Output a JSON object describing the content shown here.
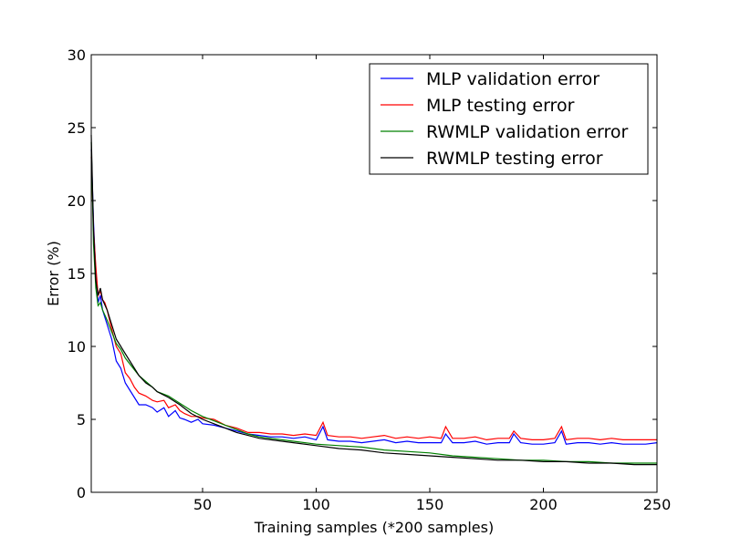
{
  "chart_data": {
    "type": "line",
    "xlabel": "Training samples (*200 samples)",
    "ylabel": "Error (%)",
    "xlim": [
      1,
      250
    ],
    "ylim": [
      0,
      30
    ],
    "x_ticks": [
      50,
      100,
      150,
      200,
      250
    ],
    "y_ticks": [
      0,
      5,
      10,
      15,
      20,
      25,
      30
    ],
    "grid": false,
    "legend_position": "top-right",
    "legend_title": "",
    "series": [
      {
        "name": "MLP validation error",
        "color": "#0000ff",
        "x": [
          1,
          2,
          3,
          4,
          5,
          6,
          7,
          8,
          10,
          12,
          14,
          16,
          18,
          20,
          22,
          25,
          28,
          30,
          33,
          35,
          38,
          40,
          42,
          45,
          48,
          50,
          55,
          60,
          65,
          70,
          75,
          80,
          85,
          90,
          95,
          100,
          103,
          105,
          110,
          115,
          120,
          125,
          130,
          135,
          140,
          145,
          150,
          155,
          157,
          160,
          165,
          170,
          175,
          180,
          185,
          187,
          190,
          195,
          200,
          205,
          208,
          210,
          215,
          220,
          225,
          230,
          235,
          240,
          245,
          250
        ],
        "values": [
          23.5,
          18.5,
          15.0,
          13.0,
          13.5,
          12.5,
          12.0,
          11.5,
          10.5,
          9.0,
          8.5,
          7.5,
          7.0,
          6.5,
          6.0,
          6.0,
          5.8,
          5.5,
          5.8,
          5.2,
          5.6,
          5.1,
          5.0,
          4.8,
          5.0,
          4.7,
          4.6,
          4.4,
          4.2,
          4.0,
          3.9,
          3.8,
          3.8,
          3.7,
          3.8,
          3.6,
          4.5,
          3.6,
          3.5,
          3.5,
          3.4,
          3.5,
          3.6,
          3.4,
          3.5,
          3.4,
          3.4,
          3.4,
          4.0,
          3.4,
          3.4,
          3.5,
          3.3,
          3.4,
          3.4,
          4.0,
          3.4,
          3.3,
          3.3,
          3.4,
          4.2,
          3.3,
          3.4,
          3.4,
          3.3,
          3.4,
          3.3,
          3.3,
          3.3,
          3.4
        ]
      },
      {
        "name": "MLP testing error",
        "color": "#ff0000",
        "x": [
          1,
          2,
          3,
          4,
          5,
          6,
          7,
          8,
          10,
          12,
          14,
          16,
          18,
          20,
          22,
          25,
          28,
          30,
          33,
          35,
          38,
          40,
          42,
          45,
          48,
          50,
          55,
          60,
          65,
          70,
          75,
          80,
          85,
          90,
          95,
          100,
          103,
          105,
          110,
          115,
          120,
          125,
          130,
          135,
          140,
          145,
          150,
          155,
          157,
          160,
          165,
          170,
          175,
          180,
          185,
          187,
          190,
          195,
          200,
          205,
          208,
          210,
          215,
          220,
          225,
          230,
          235,
          240,
          245,
          250
        ],
        "values": [
          23.0,
          18.0,
          15.5,
          13.5,
          13.8,
          13.2,
          13.0,
          12.5,
          11.2,
          10.0,
          9.5,
          8.2,
          7.8,
          7.2,
          6.8,
          6.6,
          6.3,
          6.2,
          6.3,
          5.8,
          6.0,
          5.6,
          5.4,
          5.2,
          5.2,
          5.1,
          5.0,
          4.6,
          4.4,
          4.1,
          4.1,
          4.0,
          4.0,
          3.9,
          4.0,
          3.9,
          4.8,
          3.9,
          3.8,
          3.8,
          3.7,
          3.8,
          3.9,
          3.7,
          3.8,
          3.7,
          3.8,
          3.7,
          4.5,
          3.7,
          3.7,
          3.8,
          3.6,
          3.7,
          3.7,
          4.2,
          3.7,
          3.6,
          3.6,
          3.7,
          4.5,
          3.6,
          3.7,
          3.7,
          3.6,
          3.7,
          3.6,
          3.6,
          3.6,
          3.6
        ]
      },
      {
        "name": "RWMLP validation error",
        "color": "#008000",
        "x": [
          1,
          2,
          3,
          4,
          5,
          6,
          8,
          10,
          12,
          14,
          16,
          18,
          20,
          22,
          25,
          28,
          30,
          35,
          40,
          45,
          50,
          55,
          60,
          65,
          70,
          75,
          80,
          90,
          100,
          110,
          120,
          130,
          140,
          150,
          160,
          170,
          180,
          190,
          200,
          210,
          220,
          230,
          240,
          250
        ],
        "values": [
          24.0,
          17.0,
          14.0,
          12.8,
          13.0,
          12.5,
          11.8,
          11.0,
          10.2,
          9.8,
          9.2,
          8.8,
          8.4,
          8.0,
          7.6,
          7.2,
          6.9,
          6.6,
          6.1,
          5.6,
          5.2,
          4.9,
          4.6,
          4.3,
          4.0,
          3.8,
          3.7,
          3.5,
          3.3,
          3.2,
          3.1,
          2.9,
          2.8,
          2.7,
          2.5,
          2.4,
          2.3,
          2.2,
          2.2,
          2.1,
          2.1,
          2.0,
          2.0,
          2.0
        ]
      },
      {
        "name": "RWMLP testing error",
        "color": "#000000",
        "x": [
          1,
          2,
          3,
          4,
          5,
          6,
          8,
          10,
          12,
          14,
          16,
          18,
          20,
          22,
          25,
          28,
          30,
          35,
          40,
          45,
          50,
          55,
          60,
          65,
          70,
          75,
          80,
          90,
          100,
          110,
          120,
          130,
          140,
          150,
          160,
          170,
          180,
          190,
          200,
          210,
          220,
          230,
          240,
          250
        ],
        "values": [
          24.5,
          18.0,
          14.5,
          13.5,
          14.0,
          13.2,
          12.5,
          11.5,
          10.5,
          10.0,
          9.5,
          9.0,
          8.5,
          8.0,
          7.5,
          7.2,
          6.9,
          6.5,
          6.0,
          5.4,
          5.0,
          4.7,
          4.4,
          4.1,
          3.9,
          3.7,
          3.6,
          3.4,
          3.2,
          3.0,
          2.9,
          2.7,
          2.6,
          2.5,
          2.4,
          2.3,
          2.2,
          2.2,
          2.1,
          2.1,
          2.0,
          2.0,
          1.9,
          1.9
        ]
      }
    ]
  }
}
